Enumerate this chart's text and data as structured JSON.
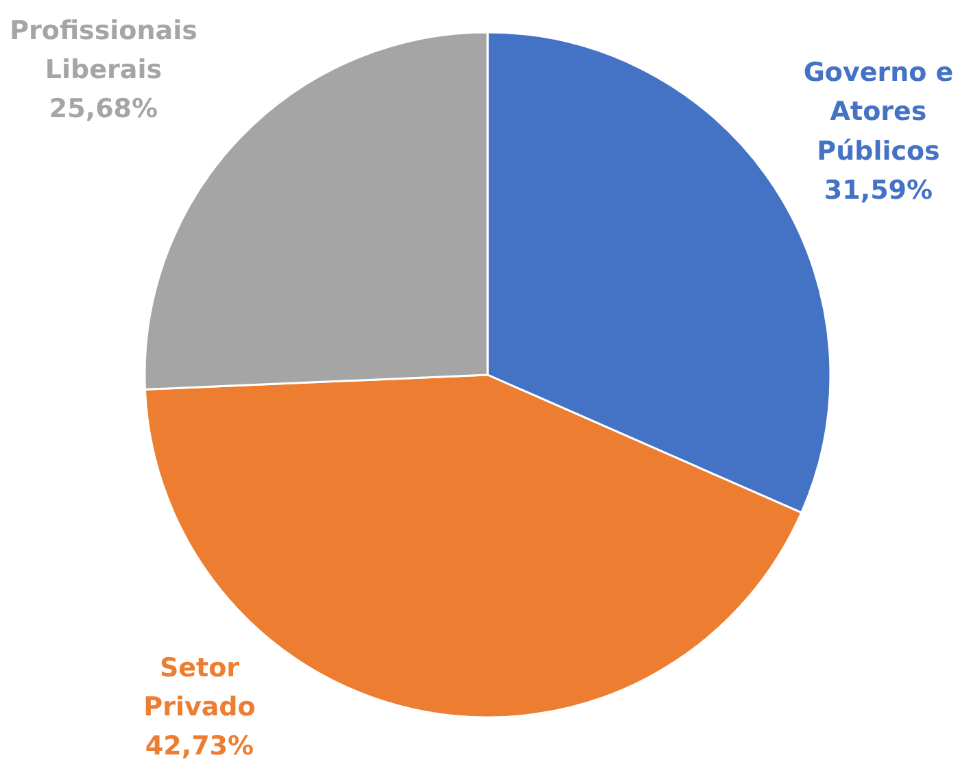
{
  "chart_data": {
    "type": "pie",
    "categories": [
      "Governo e Atores Públicos",
      "Setor Privado",
      "Profissionais Liberais"
    ],
    "values": [
      31.59,
      42.73,
      25.68
    ],
    "value_labels": [
      "31,59%",
      "42,73%",
      "25,68%"
    ],
    "colors": [
      "#4472c4",
      "#ed7d31",
      "#a5a5a5"
    ]
  }
}
